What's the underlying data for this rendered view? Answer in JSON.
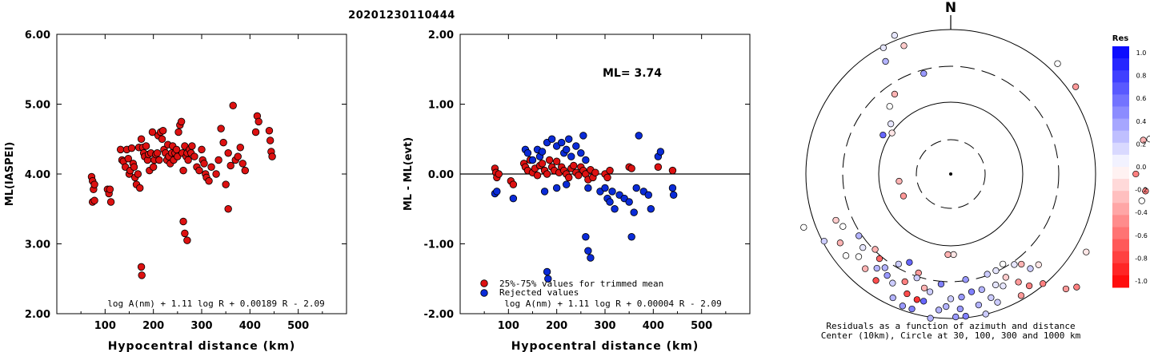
{
  "page_title": "20201230110444",
  "colors": {
    "event_red": "#dd1111",
    "rejected_blue": "#0a2bd8",
    "res_max": "#0000ff",
    "res_min": "#ff0000"
  },
  "chart_data": [
    {
      "type": "scatter",
      "ylabel": "ML(IASPEI)",
      "xlabel": "Hypocentral distance (km)",
      "xlim": [
        0,
        600
      ],
      "ylim": [
        2.0,
        6.0
      ],
      "xticks": [
        "100",
        "200",
        "300",
        "400",
        "500"
      ],
      "yticks": [
        "2.00",
        "3.00",
        "4.00",
        "5.00",
        "6.00"
      ],
      "formula": "log A(nm) + 1.11 log R + 0.00189 R - 2.09",
      "points": [
        [
          72,
          3.96
        ],
        [
          74,
          3.9
        ],
        [
          76,
          3.78
        ],
        [
          78,
          3.85
        ],
        [
          74,
          3.6
        ],
        [
          78,
          3.62
        ],
        [
          105,
          3.78
        ],
        [
          108,
          3.72
        ],
        [
          110,
          3.78
        ],
        [
          112,
          3.6
        ],
        [
          132,
          4.35
        ],
        [
          135,
          4.2
        ],
        [
          138,
          4.18
        ],
        [
          142,
          4.1
        ],
        [
          145,
          4.35
        ],
        [
          148,
          4.22
        ],
        [
          150,
          4.0
        ],
        [
          152,
          4.05
        ],
        [
          155,
          4.37
        ],
        [
          158,
          4.15
        ],
        [
          160,
          4.1
        ],
        [
          162,
          3.95
        ],
        [
          165,
          3.85
        ],
        [
          168,
          4.0
        ],
        [
          170,
          4.38
        ],
        [
          172,
          3.8
        ],
        [
          175,
          4.5
        ],
        [
          178,
          4.38
        ],
        [
          180,
          4.3
        ],
        [
          182,
          4.25
        ],
        [
          185,
          4.4
        ],
        [
          188,
          4.2
        ],
        [
          190,
          4.28
        ],
        [
          192,
          4.05
        ],
        [
          195,
          4.3
        ],
        [
          198,
          4.6
        ],
        [
          200,
          4.1
        ],
        [
          202,
          4.2
        ],
        [
          205,
          4.28
        ],
        [
          208,
          4.3
        ],
        [
          210,
          4.55
        ],
        [
          212,
          4.2
        ],
        [
          215,
          4.6
        ],
        [
          218,
          4.5
        ],
        [
          220,
          4.62
        ],
        [
          222,
          4.35
        ],
        [
          225,
          4.3
        ],
        [
          228,
          4.2
        ],
        [
          230,
          4.42
        ],
        [
          232,
          4.25
        ],
        [
          235,
          4.15
        ],
        [
          238,
          4.3
        ],
        [
          240,
          4.4
        ],
        [
          242,
          4.2
        ],
        [
          245,
          4.3
        ],
        [
          248,
          4.35
        ],
        [
          250,
          4.25
        ],
        [
          252,
          4.6
        ],
        [
          255,
          4.7
        ],
        [
          258,
          4.75
        ],
        [
          260,
          4.3
        ],
        [
          262,
          4.05
        ],
        [
          265,
          4.4
        ],
        [
          268,
          4.25
        ],
        [
          270,
          4.3
        ],
        [
          272,
          4.2
        ],
        [
          275,
          4.35
        ],
        [
          278,
          4.3
        ],
        [
          280,
          4.4
        ],
        [
          285,
          4.25
        ],
        [
          290,
          4.1
        ],
        [
          295,
          4.05
        ],
        [
          300,
          4.35
        ],
        [
          302,
          4.2
        ],
        [
          305,
          4.15
        ],
        [
          308,
          4.0
        ],
        [
          310,
          3.95
        ],
        [
          315,
          3.9
        ],
        [
          320,
          4.1
        ],
        [
          330,
          4.0
        ],
        [
          335,
          4.2
        ],
        [
          340,
          4.65
        ],
        [
          345,
          4.45
        ],
        [
          350,
          3.85
        ],
        [
          355,
          4.3
        ],
        [
          360,
          4.12
        ],
        [
          365,
          4.98
        ],
        [
          370,
          4.2
        ],
        [
          375,
          4.25
        ],
        [
          380,
          4.38
        ],
        [
          385,
          4.15
        ],
        [
          390,
          4.05
        ],
        [
          412,
          4.6
        ],
        [
          415,
          4.83
        ],
        [
          418,
          4.75
        ],
        [
          440,
          4.62
        ],
        [
          442,
          4.48
        ],
        [
          444,
          4.32
        ],
        [
          446,
          4.25
        ],
        [
          262,
          3.32
        ],
        [
          265,
          3.15
        ],
        [
          270,
          3.05
        ],
        [
          175,
          2.67
        ],
        [
          176,
          2.55
        ],
        [
          355,
          3.5
        ]
      ]
    },
    {
      "type": "scatter",
      "ylabel": "ML - ML(evt)",
      "xlabel": "Hypocentral distance (km)",
      "xlim": [
        0,
        600
      ],
      "ylim": [
        -2.0,
        2.0
      ],
      "xticks": [
        "100",
        "200",
        "300",
        "400",
        "500"
      ],
      "yticks": [
        "-2.00",
        "-1.00",
        "0.00",
        "1.00",
        "2.00"
      ],
      "annotation": "ML= 3.74",
      "formula": "log A(nm) + 1.11 log R + 0.00004 R - 2.09",
      "legend": [
        "25%-75% values for trimmed mean",
        "Rejected values"
      ],
      "trimmed": [
        [
          72,
          0.08
        ],
        [
          74,
          0.02
        ],
        [
          76,
          -0.05
        ],
        [
          80,
          0.0
        ],
        [
          105,
          -0.1
        ],
        [
          110,
          -0.15
        ],
        [
          132,
          0.15
        ],
        [
          135,
          0.1
        ],
        [
          140,
          0.05
        ],
        [
          145,
          0.2
        ],
        [
          150,
          0.02
        ],
        [
          155,
          0.08
        ],
        [
          160,
          -0.02
        ],
        [
          165,
          0.12
        ],
        [
          170,
          0.15
        ],
        [
          175,
          0.05
        ],
        [
          180,
          0.0
        ],
        [
          185,
          0.2
        ],
        [
          190,
          0.1
        ],
        [
          195,
          0.05
        ],
        [
          200,
          0.18
        ],
        [
          205,
          0.02
        ],
        [
          210,
          0.1
        ],
        [
          215,
          0.05
        ],
        [
          220,
          0.0
        ],
        [
          225,
          -0.05
        ],
        [
          230,
          0.08
        ],
        [
          235,
          0.12
        ],
        [
          240,
          0.02
        ],
        [
          245,
          -0.02
        ],
        [
          250,
          0.1
        ],
        [
          255,
          0.05
        ],
        [
          260,
          0.0
        ],
        [
          265,
          -0.08
        ],
        [
          270,
          0.06
        ],
        [
          275,
          -0.05
        ],
        [
          280,
          0.02
        ],
        [
          300,
          0.0
        ],
        [
          305,
          -0.05
        ],
        [
          310,
          0.05
        ],
        [
          350,
          0.1
        ],
        [
          355,
          0.08
        ],
        [
          410,
          0.1
        ],
        [
          440,
          0.05
        ]
      ],
      "rejected": [
        [
          72,
          -0.28
        ],
        [
          76,
          -0.25
        ],
        [
          110,
          -0.35
        ],
        [
          135,
          0.35
        ],
        [
          140,
          0.3
        ],
        [
          150,
          0.2
        ],
        [
          160,
          0.35
        ],
        [
          165,
          0.25
        ],
        [
          170,
          0.32
        ],
        [
          180,
          0.45
        ],
        [
          190,
          0.5
        ],
        [
          200,
          0.4
        ],
        [
          210,
          0.45
        ],
        [
          215,
          0.3
        ],
        [
          220,
          0.35
        ],
        [
          225,
          0.5
        ],
        [
          230,
          0.25
        ],
        [
          240,
          0.4
        ],
        [
          250,
          0.3
        ],
        [
          255,
          0.55
        ],
        [
          260,
          0.2
        ],
        [
          175,
          -0.25
        ],
        [
          200,
          -0.2
        ],
        [
          220,
          -0.15
        ],
        [
          265,
          -0.2
        ],
        [
          290,
          -0.25
        ],
        [
          300,
          -0.2
        ],
        [
          305,
          -0.35
        ],
        [
          310,
          -0.4
        ],
        [
          315,
          -0.25
        ],
        [
          320,
          -0.5
        ],
        [
          330,
          -0.3
        ],
        [
          340,
          -0.35
        ],
        [
          350,
          -0.4
        ],
        [
          360,
          -0.55
        ],
        [
          365,
          -0.2
        ],
        [
          370,
          0.55
        ],
        [
          380,
          -0.25
        ],
        [
          390,
          -0.3
        ],
        [
          395,
          -0.5
        ],
        [
          410,
          0.25
        ],
        [
          415,
          0.32
        ],
        [
          440,
          -0.2
        ],
        [
          442,
          -0.3
        ],
        [
          180,
          -1.4
        ],
        [
          182,
          -1.5
        ],
        [
          260,
          -0.9
        ],
        [
          265,
          -1.1
        ],
        [
          270,
          -1.2
        ],
        [
          355,
          -0.9
        ]
      ]
    }
  ],
  "polar": {
    "north_label": "N",
    "caption_line1": "Residuals as a function of azimuth and distance",
    "caption_line2": "Center (10km), Circle at 30, 100, 300 and 1000 km",
    "colorbar_title": "Res",
    "colorbar_ticks": [
      "1.0",
      "0.8",
      "0.6",
      "0.4",
      "0.2",
      "0.0",
      "-0.2",
      "-0.4",
      "-0.6",
      "-0.8",
      "-1.0"
    ],
    "points": [
      [
        20,
        160,
        0.7
      ],
      [
        22,
        175,
        0.6
      ],
      [
        44,
        118,
        0
      ],
      [
        55,
        117,
        -0.4
      ],
      [
        80,
        150,
        -0.3
      ],
      [
        80,
        155,
        0
      ],
      [
        90,
        142,
        -0.5
      ],
      [
        95,
        150,
        -0.5
      ],
      [
        98,
        148,
        0
      ],
      [
        120,
        120,
        -0.1
      ],
      [
        132,
        130,
        -0.5
      ],
      [
        178,
        62,
        -0.1
      ],
      [
        182,
        62,
        -0.3
      ],
      [
        245,
        40,
        -0.4
      ],
      [
        262,
        40,
        -0.3
      ],
      [
        300,
        60,
        0.6
      ],
      [
        305,
        55,
        -0.1
      ],
      [
        310,
        60,
        0.1
      ],
      [
        318,
        70,
        0
      ],
      [
        325,
        75,
        -0.3
      ],
      [
        330,
        100,
        0.3
      ],
      [
        332,
        110,
        0.1
      ],
      [
        338,
        115,
        0.1
      ],
      [
        340,
        105,
        -0.2
      ],
      [
        345,
        80,
        0.4
      ],
      [
        198,
        80,
        -0.4
      ],
      [
        200,
        98,
        -0.7
      ],
      [
        195,
        100,
        -0.8
      ],
      [
        190,
        92,
        0.2
      ],
      [
        185,
        105,
        0.3
      ],
      [
        180,
        96,
        0.2
      ],
      [
        175,
        95,
        0.4
      ],
      [
        170,
        92,
        0.5
      ],
      [
        165,
        92,
        0.3
      ],
      [
        160,
        105,
        0.2
      ],
      [
        155,
        95,
        0.1
      ],
      [
        150,
        108,
        -0.4
      ],
      [
        145,
        105,
        -0.5
      ],
      [
        140,
        110,
        -0.5
      ],
      [
        135,
        125,
        -0.4
      ],
      [
        205,
        75,
        0.6
      ],
      [
        210,
        80,
        0.2
      ],
      [
        215,
        88,
        0.3
      ],
      [
        220,
        85,
        -0.6
      ],
      [
        225,
        82,
        -0.3
      ],
      [
        228,
        95,
        0
      ],
      [
        232,
        102,
        0
      ],
      [
        238,
        100,
        -0.3
      ],
      [
        242,
        110,
        0.2
      ],
      [
        250,
        120,
        0
      ],
      [
        185,
        85,
        0.5
      ],
      [
        172,
        82,
        0.4
      ],
      [
        168,
        103,
        0.3
      ],
      [
        162,
        100,
        0.2
      ],
      [
        158,
        92,
        0.1
      ],
      [
        152,
        90,
        -0.2
      ],
      [
        148,
        98,
        -0.4
      ],
      [
        193,
        90,
        -0.3
      ],
      [
        203,
        90,
        -0.5
      ],
      [
        208,
        95,
        0.2
      ],
      [
        212,
        92,
        0.4
      ],
      [
        218,
        92,
        0.3
      ],
      [
        178,
        110,
        0.4
      ],
      [
        188,
        112,
        0.3
      ],
      [
        196,
        108,
        0.5
      ],
      [
        174,
        110,
        0.5
      ],
      [
        166,
        111,
        0.2
      ],
      [
        200,
        108,
        0.4
      ],
      [
        205,
        105,
        0.3
      ],
      [
        192,
        100,
        0.6
      ],
      [
        182,
        102,
        0.3
      ],
      [
        176,
        104,
        0.4
      ],
      [
        160,
        82,
        0.2
      ],
      [
        155,
        82,
        0.1
      ],
      [
        150,
        80,
        0
      ],
      [
        198,
        84,
        0.2
      ],
      [
        215,
        100,
        -0.7
      ],
      [
        222,
        98,
        -0.3
      ],
      [
        230,
        88,
        0.1
      ],
      [
        236,
        85,
        0.3
      ],
      [
        244,
        92,
        0
      ],
      [
        248,
        95,
        -0.2
      ],
      [
        140,
        95,
        0.2
      ],
      [
        136,
        97,
        -0.1
      ],
      [
        142,
        88,
        -0.3
      ],
      [
        145,
        85,
        0.1
      ]
    ]
  }
}
